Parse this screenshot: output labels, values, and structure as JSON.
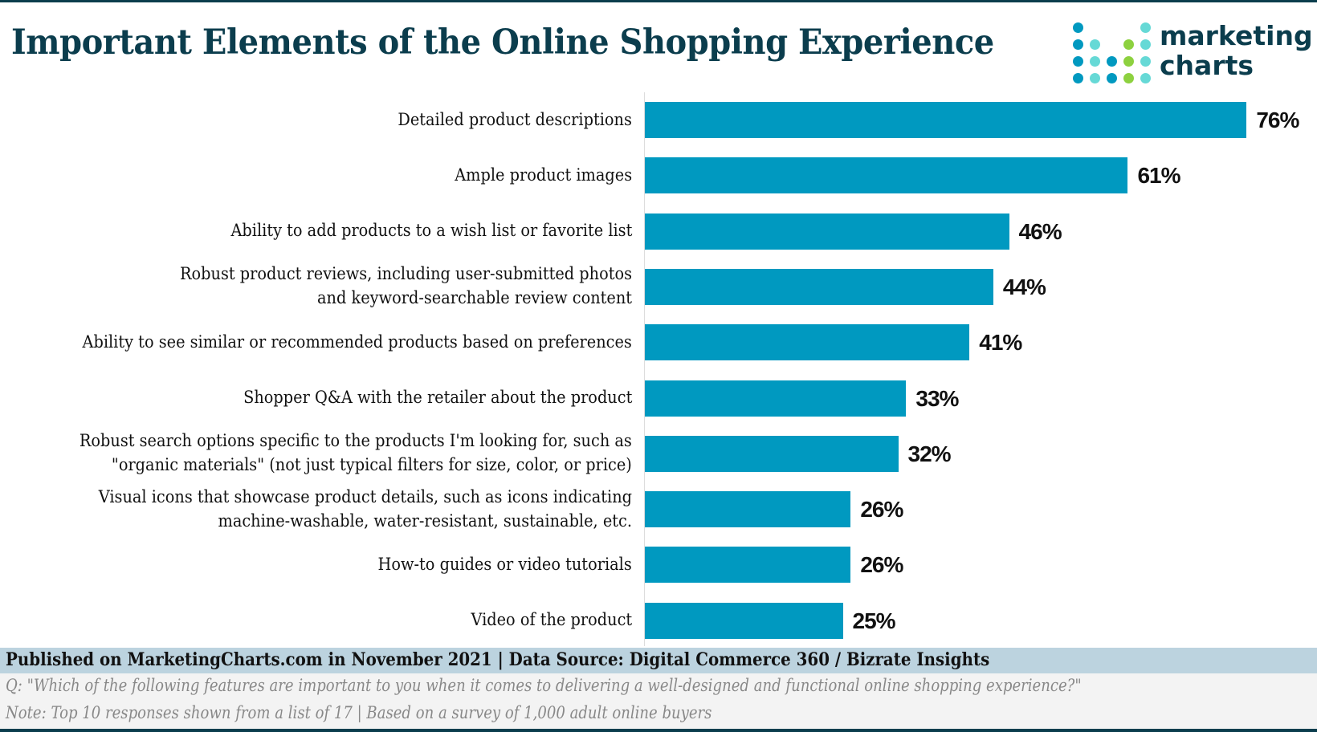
{
  "header": {
    "title": "Important Elements of the Online Shopping Experience",
    "logo_text": "marketing charts"
  },
  "colors": {
    "bar": "#0099c0",
    "title": "#0b3d4d",
    "logo_dots": [
      "#0099c0",
      "#66d9d6",
      "#8dd13f"
    ]
  },
  "chart_data": {
    "type": "bar",
    "orientation": "horizontal",
    "title": "Important Elements of the Online Shopping Experience",
    "categories": [
      [
        "Detailed product descriptions"
      ],
      [
        "Ample product images"
      ],
      [
        "Ability to add products to a wish list or favorite list"
      ],
      [
        "Robust product reviews, including user-submitted photos",
        "and keyword-searchable review content"
      ],
      [
        "Ability to see similar or recommended products based on preferences"
      ],
      [
        "Shopper Q&A with the retailer about the product"
      ],
      [
        "Robust search options specific to the products I'm looking for, such as",
        "\"organic materials\" (not just typical filters for size, color, or price)"
      ],
      [
        "Visual icons that showcase product details, such as icons indicating",
        "machine-washable, water-resistant, sustainable, etc."
      ],
      [
        "How-to guides or video tutorials"
      ],
      [
        "Video of the product"
      ]
    ],
    "values": [
      76,
      61,
      46,
      44,
      41,
      33,
      32,
      26,
      26,
      25
    ],
    "value_labels": [
      "76%",
      "61%",
      "46%",
      "44%",
      "41%",
      "33%",
      "32%",
      "26%",
      "26%",
      "25%"
    ],
    "xlim": [
      0,
      80
    ],
    "grid": false
  },
  "footer": {
    "published": "Published on MarketingCharts.com in November 2021 | Data Source: Digital Commerce 360 / Bizrate Insights",
    "question": "Q: \"Which of the following features are important to you when it comes to delivering a well-designed and functional online shopping experience?\"",
    "note": "Note: Top 10 responses shown from a list of 17 | Based on a survey of 1,000 adult online buyers"
  }
}
